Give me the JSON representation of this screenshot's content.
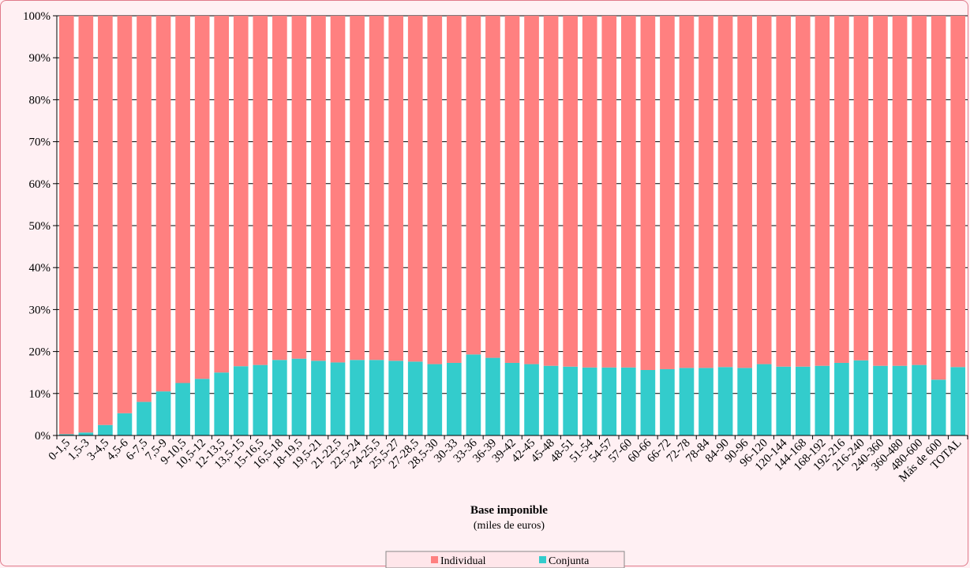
{
  "chart_data": {
    "type": "bar",
    "stacked": true,
    "percent": true,
    "categories": [
      "0-1,5",
      "1,5-3",
      "3-4,5",
      "4,5-6",
      "6-7,5",
      "7,5-9",
      "9-10,5",
      "10,5-12",
      "12-13,5",
      "13,5-15",
      "15-16,5",
      "16,5-18",
      "18-19,5",
      "19,5-21",
      "21-22,5",
      "22,5-24",
      "24-25,5",
      "25,5-27",
      "27-28,5",
      "28,5-30",
      "30-33",
      "33-36",
      "36-39",
      "39-42",
      "42-45",
      "45-48",
      "48-51",
      "51-54",
      "54-57",
      "57-60",
      "60-66",
      "66-72",
      "72-78",
      "78-84",
      "84-90",
      "90-96",
      "96-120",
      "120-144",
      "144-168",
      "168-192",
      "192-216",
      "216-240",
      "240-360",
      "360-480",
      "480-600",
      "Más de 600",
      "TOTAL"
    ],
    "series": [
      {
        "name": "Conjunta",
        "color": "#33cccc",
        "values": [
          0.3,
          0.7,
          2.5,
          5.3,
          8.0,
          10.5,
          12.5,
          13.5,
          15.0,
          16.5,
          16.8,
          18.0,
          18.3,
          17.8,
          17.4,
          18.0,
          18.0,
          17.8,
          17.6,
          17.0,
          17.3,
          19.3,
          18.5,
          17.3,
          17.0,
          16.6,
          16.4,
          16.2,
          16.2,
          16.2,
          15.6,
          15.8,
          16.1,
          16.1,
          16.3,
          16.1,
          17.0,
          16.4,
          16.4,
          16.6,
          17.3,
          17.9,
          16.6,
          16.6,
          16.8,
          13.3,
          16.3
        ]
      },
      {
        "name": "Individual",
        "color": "#ff8080",
        "values": [
          99.7,
          99.3,
          97.5,
          94.7,
          92.0,
          89.5,
          87.5,
          86.5,
          85.0,
          83.5,
          83.2,
          82.0,
          81.7,
          82.2,
          82.6,
          82.0,
          82.0,
          82.2,
          82.4,
          83.0,
          82.7,
          80.7,
          81.5,
          82.7,
          83.0,
          83.4,
          83.6,
          83.8,
          83.8,
          83.8,
          84.4,
          84.2,
          83.9,
          83.9,
          83.7,
          83.9,
          83.0,
          83.6,
          83.6,
          83.4,
          82.7,
          82.1,
          83.4,
          83.4,
          83.2,
          86.7,
          83.7
        ]
      }
    ],
    "yticks": [
      "0%",
      "10%",
      "20%",
      "30%",
      "40%",
      "50%",
      "60%",
      "70%",
      "80%",
      "90%",
      "100%"
    ],
    "ylim": [
      0,
      100
    ],
    "xlabel": "Base imponible",
    "xlabel_sub": "(miles de euros)",
    "legend": {
      "position": "bottom",
      "items": [
        "Individual",
        "Conjunta"
      ]
    },
    "grid": true
  }
}
